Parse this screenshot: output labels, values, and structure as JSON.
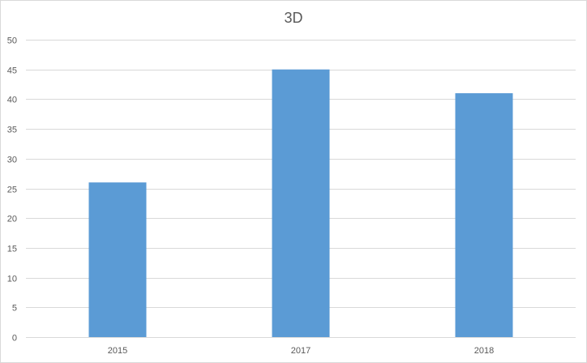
{
  "chart_data": {
    "type": "bar",
    "title": "3D",
    "xlabel": "",
    "ylabel": "",
    "categories": [
      "2015",
      "2017",
      "2018"
    ],
    "values": [
      26,
      45,
      41
    ],
    "ylim": [
      0,
      50
    ],
    "yticks": [
      0,
      5,
      10,
      15,
      20,
      25,
      30,
      35,
      40,
      45,
      50
    ],
    "grid": true,
    "legend": "none",
    "bar_color": "#5b9bd5",
    "grid_color": "#d9d9d9",
    "axis_line_color": "#d9d9d9"
  }
}
